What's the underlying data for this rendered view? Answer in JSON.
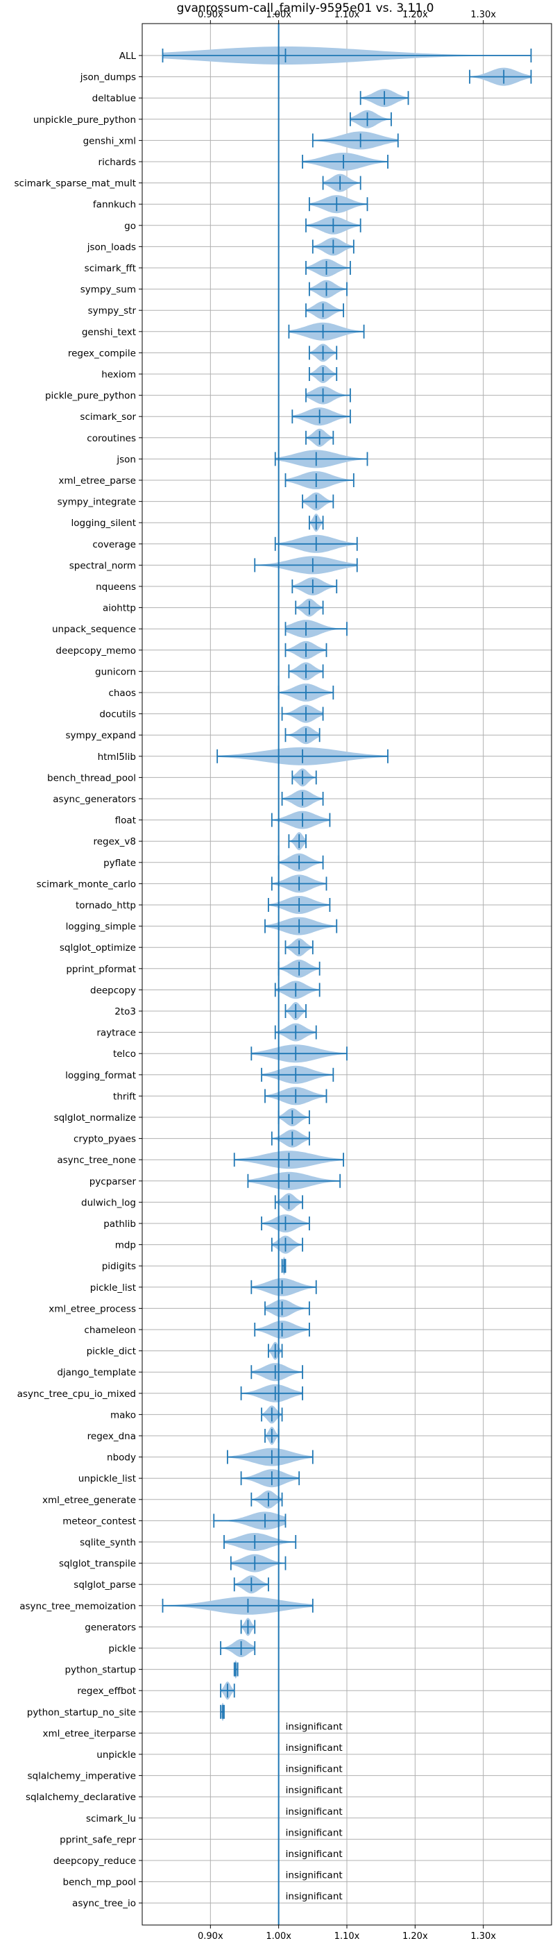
{
  "chart_data": {
    "type": "violin",
    "title": "gvanrossum-call_family-9595e01 vs. 3.11.0",
    "xlabel": "",
    "ylabel": "",
    "xlim": [
      0.8,
      1.4
    ],
    "x_ticks": [
      0.9,
      1.0,
      1.1,
      1.2,
      1.3
    ],
    "x_tick_labels": [
      "0.90x",
      "1.00x",
      "1.10x",
      "1.20x",
      "1.30x"
    ],
    "x_ticks_on_top_and_bottom": true,
    "grid": true,
    "reference_line": 1.0,
    "colors": {
      "violin_fill": "#a9c9e6",
      "marker": "#1f77b4",
      "grid": "#b0b0b0",
      "axes": "#000000"
    },
    "insignificant_text": "insignificant",
    "benchmarks": [
      {
        "name": "ALL",
        "min": 0.83,
        "max": 1.37,
        "median": 1.01
      },
      {
        "name": "json_dumps",
        "min": 1.28,
        "max": 1.37,
        "median": 1.33
      },
      {
        "name": "deltablue",
        "min": 1.12,
        "max": 1.19,
        "median": 1.155
      },
      {
        "name": "unpickle_pure_python",
        "min": 1.105,
        "max": 1.165,
        "median": 1.13
      },
      {
        "name": "genshi_xml",
        "min": 1.05,
        "max": 1.175,
        "median": 1.12
      },
      {
        "name": "richards",
        "min": 1.035,
        "max": 1.16,
        "median": 1.095
      },
      {
        "name": "scimark_sparse_mat_mult",
        "min": 1.065,
        "max": 1.12,
        "median": 1.09
      },
      {
        "name": "fannkuch",
        "min": 1.045,
        "max": 1.13,
        "median": 1.085
      },
      {
        "name": "go",
        "min": 1.04,
        "max": 1.12,
        "median": 1.08
      },
      {
        "name": "json_loads",
        "min": 1.05,
        "max": 1.11,
        "median": 1.08
      },
      {
        "name": "scimark_fft",
        "min": 1.04,
        "max": 1.105,
        "median": 1.07
      },
      {
        "name": "sympy_sum",
        "min": 1.045,
        "max": 1.1,
        "median": 1.07
      },
      {
        "name": "sympy_str",
        "min": 1.04,
        "max": 1.095,
        "median": 1.065
      },
      {
        "name": "genshi_text",
        "min": 1.015,
        "max": 1.125,
        "median": 1.065
      },
      {
        "name": "regex_compile",
        "min": 1.045,
        "max": 1.085,
        "median": 1.065
      },
      {
        "name": "hexiom",
        "min": 1.045,
        "max": 1.085,
        "median": 1.065
      },
      {
        "name": "pickle_pure_python",
        "min": 1.04,
        "max": 1.105,
        "median": 1.065
      },
      {
        "name": "scimark_sor",
        "min": 1.02,
        "max": 1.105,
        "median": 1.06
      },
      {
        "name": "coroutines",
        "min": 1.04,
        "max": 1.08,
        "median": 1.06
      },
      {
        "name": "json",
        "min": 0.995,
        "max": 1.13,
        "median": 1.055
      },
      {
        "name": "xml_etree_parse",
        "min": 1.01,
        "max": 1.11,
        "median": 1.055
      },
      {
        "name": "sympy_integrate",
        "min": 1.035,
        "max": 1.08,
        "median": 1.055
      },
      {
        "name": "logging_silent",
        "min": 1.045,
        "max": 1.065,
        "median": 1.055
      },
      {
        "name": "coverage",
        "min": 0.995,
        "max": 1.115,
        "median": 1.055
      },
      {
        "name": "spectral_norm",
        "min": 0.965,
        "max": 1.115,
        "median": 1.05
      },
      {
        "name": "nqueens",
        "min": 1.02,
        "max": 1.085,
        "median": 1.05
      },
      {
        "name": "aiohttp",
        "min": 1.025,
        "max": 1.065,
        "median": 1.045
      },
      {
        "name": "unpack_sequence",
        "min": 1.01,
        "max": 1.1,
        "median": 1.04
      },
      {
        "name": "deepcopy_memo",
        "min": 1.01,
        "max": 1.07,
        "median": 1.04
      },
      {
        "name": "gunicorn",
        "min": 1.015,
        "max": 1.065,
        "median": 1.04
      },
      {
        "name": "chaos",
        "min": 1.0,
        "max": 1.08,
        "median": 1.04
      },
      {
        "name": "docutils",
        "min": 1.005,
        "max": 1.065,
        "median": 1.04
      },
      {
        "name": "sympy_expand",
        "min": 1.01,
        "max": 1.06,
        "median": 1.04
      },
      {
        "name": "html5lib",
        "min": 0.91,
        "max": 1.16,
        "median": 1.035
      },
      {
        "name": "bench_thread_pool",
        "min": 1.02,
        "max": 1.055,
        "median": 1.035
      },
      {
        "name": "async_generators",
        "min": 1.005,
        "max": 1.065,
        "median": 1.035
      },
      {
        "name": "float",
        "min": 0.99,
        "max": 1.075,
        "median": 1.035
      },
      {
        "name": "regex_v8",
        "min": 1.015,
        "max": 1.04,
        "median": 1.03
      },
      {
        "name": "pyflate",
        "min": 1.0,
        "max": 1.065,
        "median": 1.03
      },
      {
        "name": "scimark_monte_carlo",
        "min": 0.99,
        "max": 1.07,
        "median": 1.03
      },
      {
        "name": "tornado_http",
        "min": 0.985,
        "max": 1.075,
        "median": 1.03
      },
      {
        "name": "logging_simple",
        "min": 0.98,
        "max": 1.085,
        "median": 1.03
      },
      {
        "name": "sqlglot_optimize",
        "min": 1.01,
        "max": 1.05,
        "median": 1.03
      },
      {
        "name": "pprint_pformat",
        "min": 1.0,
        "max": 1.06,
        "median": 1.03
      },
      {
        "name": "deepcopy",
        "min": 0.995,
        "max": 1.06,
        "median": 1.025
      },
      {
        "name": "2to3",
        "min": 1.01,
        "max": 1.04,
        "median": 1.025
      },
      {
        "name": "raytrace",
        "min": 0.995,
        "max": 1.055,
        "median": 1.025
      },
      {
        "name": "telco",
        "min": 0.96,
        "max": 1.1,
        "median": 1.025
      },
      {
        "name": "logging_format",
        "min": 0.975,
        "max": 1.08,
        "median": 1.025
      },
      {
        "name": "thrift",
        "min": 0.98,
        "max": 1.07,
        "median": 1.025
      },
      {
        "name": "sqlglot_normalize",
        "min": 1.0,
        "max": 1.045,
        "median": 1.02
      },
      {
        "name": "crypto_pyaes",
        "min": 0.99,
        "max": 1.045,
        "median": 1.02
      },
      {
        "name": "async_tree_none",
        "min": 0.935,
        "max": 1.095,
        "median": 1.015
      },
      {
        "name": "pycparser",
        "min": 0.955,
        "max": 1.09,
        "median": 1.015
      },
      {
        "name": "dulwich_log",
        "min": 0.995,
        "max": 1.035,
        "median": 1.015
      },
      {
        "name": "pathlib",
        "min": 0.975,
        "max": 1.045,
        "median": 1.01
      },
      {
        "name": "mdp",
        "min": 0.99,
        "max": 1.035,
        "median": 1.01
      },
      {
        "name": "pidigits",
        "min": 1.005,
        "max": 1.01,
        "median": 1.008
      },
      {
        "name": "pickle_list",
        "min": 0.96,
        "max": 1.055,
        "median": 1.005
      },
      {
        "name": "xml_etree_process",
        "min": 0.98,
        "max": 1.045,
        "median": 1.005
      },
      {
        "name": "chameleon",
        "min": 0.965,
        "max": 1.045,
        "median": 1.005
      },
      {
        "name": "pickle_dict",
        "min": 0.985,
        "max": 1.005,
        "median": 0.995
      },
      {
        "name": "django_template",
        "min": 0.96,
        "max": 1.035,
        "median": 0.995
      },
      {
        "name": "async_tree_cpu_io_mixed",
        "min": 0.945,
        "max": 1.035,
        "median": 0.995
      },
      {
        "name": "mako",
        "min": 0.975,
        "max": 1.005,
        "median": 0.99
      },
      {
        "name": "regex_dna",
        "min": 0.98,
        "max": 1.0,
        "median": 0.99
      },
      {
        "name": "nbody",
        "min": 0.925,
        "max": 1.05,
        "median": 0.99
      },
      {
        "name": "unpickle_list",
        "min": 0.945,
        "max": 1.03,
        "median": 0.99
      },
      {
        "name": "xml_etree_generate",
        "min": 0.96,
        "max": 1.005,
        "median": 0.985
      },
      {
        "name": "meteor_contest",
        "min": 0.905,
        "max": 1.01,
        "median": 0.98
      },
      {
        "name": "sqlite_synth",
        "min": 0.92,
        "max": 1.025,
        "median": 0.965
      },
      {
        "name": "sqlglot_transpile",
        "min": 0.93,
        "max": 1.01,
        "median": 0.965
      },
      {
        "name": "sqlglot_parse",
        "min": 0.935,
        "max": 0.985,
        "median": 0.96
      },
      {
        "name": "async_tree_memoization",
        "min": 0.83,
        "max": 1.05,
        "median": 0.955
      },
      {
        "name": "generators",
        "min": 0.945,
        "max": 0.965,
        "median": 0.955
      },
      {
        "name": "pickle",
        "min": 0.915,
        "max": 0.965,
        "median": 0.945
      },
      {
        "name": "python_startup",
        "min": 0.935,
        "max": 0.94,
        "median": 0.937
      },
      {
        "name": "regex_effbot",
        "min": 0.915,
        "max": 0.935,
        "median": 0.925
      },
      {
        "name": "python_startup_no_site",
        "min": 0.915,
        "max": 0.92,
        "median": 0.918
      },
      {
        "name": "xml_etree_iterparse",
        "insignificant": true
      },
      {
        "name": "unpickle",
        "insignificant": true
      },
      {
        "name": "sqlalchemy_imperative",
        "insignificant": true
      },
      {
        "name": "sqlalchemy_declarative",
        "insignificant": true
      },
      {
        "name": "scimark_lu",
        "insignificant": true
      },
      {
        "name": "pprint_safe_repr",
        "insignificant": true
      },
      {
        "name": "deepcopy_reduce",
        "insignificant": true
      },
      {
        "name": "bench_mp_pool",
        "insignificant": true
      },
      {
        "name": "async_tree_io",
        "insignificant": true
      }
    ]
  }
}
